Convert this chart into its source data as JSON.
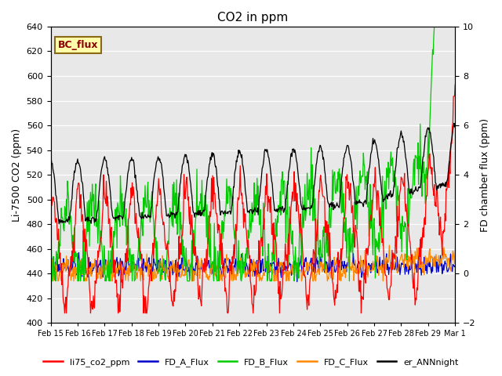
{
  "title": "CO2 in ppm",
  "ylabel_left": "Li-7500 CO2 (ppm)",
  "ylabel_right": "FD chamber flux (ppm)",
  "ylim_left": [
    400,
    640
  ],
  "ylim_right": [
    -2,
    10
  ],
  "bg_color": "#e8e8e8",
  "bc_flux_label": "BC_flux",
  "legend_entries": [
    "li75_co2_ppm",
    "FD_A_Flux",
    "FD_B_Flux",
    "FD_C_Flux",
    "er_ANNnight"
  ],
  "legend_colors": [
    "#ff0000",
    "#0000cc",
    "#00cc00",
    "#ff8800",
    "#000000"
  ],
  "line_colors": [
    "#ff0000",
    "#0000cc",
    "#00cc00",
    "#ff8800",
    "#000000"
  ],
  "xtick_labels": [
    "Feb 15",
    "Feb 16",
    "Feb 17",
    "Feb 18",
    "Feb 19",
    "Feb 20",
    "Feb 21",
    "Feb 22",
    "Feb 23",
    "Feb 24",
    "Feb 25",
    "Feb 26",
    "Feb 27",
    "Feb 28",
    "Feb 29",
    "Mar 1"
  ],
  "yticks_left": [
    400,
    420,
    440,
    460,
    480,
    500,
    520,
    540,
    560,
    580,
    600,
    620,
    640
  ],
  "yticks_right": [
    -2,
    0,
    2,
    4,
    6,
    8,
    10
  ],
  "figsize": [
    6.4,
    4.8
  ],
  "dpi": 100
}
